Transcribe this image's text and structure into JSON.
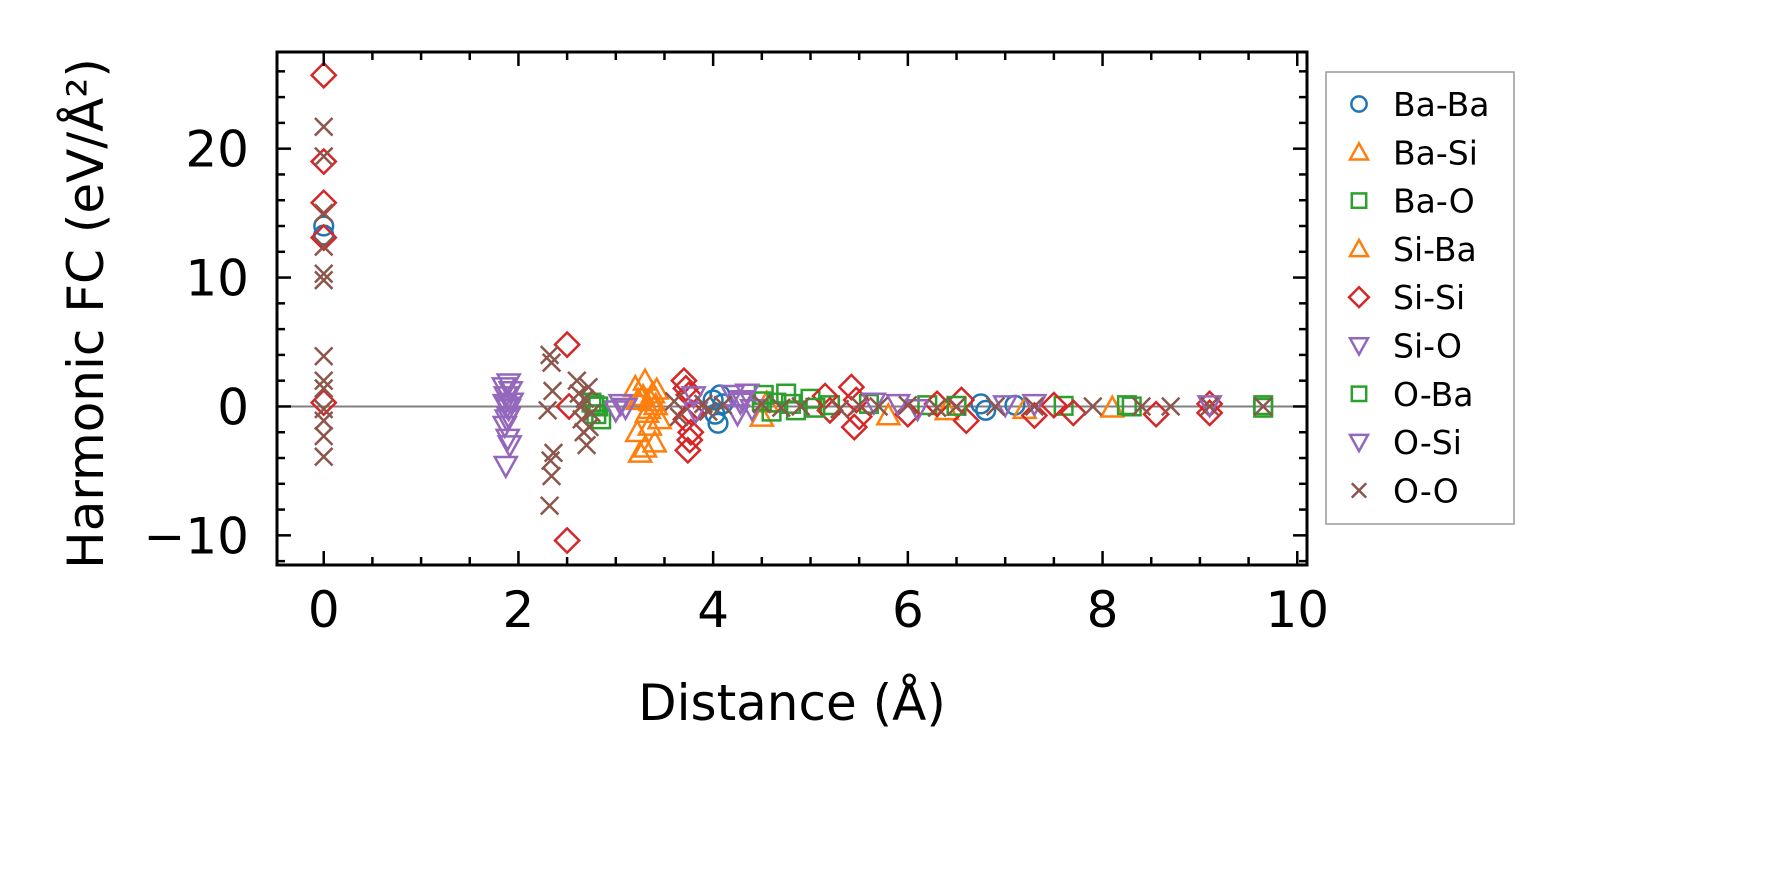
{
  "chart_data": {
    "type": "scatter",
    "xlabel": "Distance (Å)",
    "ylabel": "Harmonic FC (eV/Å²)",
    "xlim": [
      -0.48,
      10.1
    ],
    "ylim": [
      -12.3,
      27.5
    ],
    "xticks": [
      0,
      2,
      4,
      6,
      8,
      10
    ],
    "yticks": [
      -10,
      0,
      10,
      20
    ],
    "xtick_labels": [
      "0",
      "2",
      "4",
      "6",
      "8",
      "10"
    ],
    "ytick_labels": [
      "−10",
      "0",
      "10",
      "20"
    ],
    "zero_line": true,
    "grid": false,
    "legend_position": "outside-right",
    "colors": {
      "Ba-Ba": "#1f77b4",
      "Ba-Si": "#ff7f0e",
      "Ba-O": "#2ca02c",
      "Si-Ba": "#ff7f0e",
      "Si-Si": "#d62728",
      "Si-O": "#9467bd",
      "O-Ba": "#2ca02c",
      "O-Si": "#9467bd",
      "O-O": "#8c564b"
    },
    "series": [
      {
        "name": "Ba-Ba",
        "marker": "circle",
        "points": [
          [
            0,
            14.0
          ],
          [
            0,
            13.3
          ],
          [
            4.0,
            0.5
          ],
          [
            4.02,
            -0.6
          ],
          [
            4.05,
            -1.3
          ],
          [
            4.07,
            0.9
          ],
          [
            4.1,
            0.2
          ],
          [
            6.75,
            0.2
          ],
          [
            6.8,
            -0.3
          ],
          [
            7.1,
            0.1
          ]
        ]
      },
      {
        "name": "Ba-Si",
        "marker": "triangle-up",
        "points": [
          [
            3.2,
            1.5
          ],
          [
            3.22,
            -2.0
          ],
          [
            3.25,
            -3.6
          ],
          [
            3.28,
            0.8
          ],
          [
            3.3,
            2.0
          ],
          [
            3.32,
            -0.5
          ],
          [
            3.35,
            -1.5
          ],
          [
            3.38,
            1.0
          ],
          [
            3.4,
            -2.8
          ],
          [
            3.42,
            1.3
          ],
          [
            3.45,
            -1.0
          ],
          [
            3.3,
            -3.2
          ],
          [
            3.36,
            0.4
          ],
          [
            4.5,
            -0.8
          ],
          [
            4.55,
            0.3
          ],
          [
            5.8,
            -0.7
          ],
          [
            6.4,
            -0.3
          ],
          [
            7.2,
            -0.2
          ],
          [
            8.1,
            -0.1
          ]
        ]
      },
      {
        "name": "Ba-O",
        "marker": "square",
        "points": [
          [
            2.75,
            0.3
          ],
          [
            2.8,
            -0.6
          ],
          [
            2.82,
            0.0
          ],
          [
            2.85,
            -1.0
          ],
          [
            4.5,
            0.4
          ],
          [
            4.52,
            0.9
          ],
          [
            4.6,
            -0.4
          ],
          [
            4.75,
            1.0
          ],
          [
            4.8,
            0.2
          ],
          [
            4.85,
            -0.3
          ],
          [
            5.0,
            0.6
          ],
          [
            5.2,
            0.1
          ],
          [
            5.6,
            0.2
          ],
          [
            6.2,
            0.1
          ],
          [
            7.6,
            0.05
          ],
          [
            8.25,
            0.1
          ],
          [
            9.65,
            -0.1
          ],
          [
            9.65,
            0.1
          ]
        ]
      },
      {
        "name": "Si-Ba",
        "marker": "triangle-up",
        "points": [
          [
            3.23,
            0.5
          ],
          [
            3.34,
            -0.2
          ],
          [
            3.41,
            0.1
          ]
        ]
      },
      {
        "name": "Si-Si",
        "marker": "diamond",
        "points": [
          [
            0,
            25.7
          ],
          [
            0,
            19.0
          ],
          [
            0,
            15.8
          ],
          [
            0,
            13.1
          ],
          [
            0,
            0.3
          ],
          [
            2.5,
            4.8
          ],
          [
            2.5,
            -10.4
          ],
          [
            2.52,
            0.0
          ],
          [
            3.7,
            2.0
          ],
          [
            3.72,
            -1.0
          ],
          [
            3.74,
            -3.4
          ],
          [
            3.75,
            0.9
          ],
          [
            3.77,
            -2.0
          ],
          [
            3.78,
            -0.5
          ],
          [
            3.72,
            1.4
          ],
          [
            3.76,
            -2.6
          ],
          [
            5.15,
            0.8
          ],
          [
            5.2,
            -0.3
          ],
          [
            5.42,
            1.5
          ],
          [
            5.45,
            -1.6
          ],
          [
            5.47,
            0.5
          ],
          [
            5.5,
            -0.8
          ],
          [
            6.0,
            -0.6
          ],
          [
            6.3,
            0.2
          ],
          [
            6.55,
            0.5
          ],
          [
            6.6,
            -1.1
          ],
          [
            7.3,
            -0.7
          ],
          [
            7.5,
            0.1
          ],
          [
            7.7,
            -0.5
          ],
          [
            8.55,
            -0.6
          ],
          [
            9.1,
            -0.5
          ],
          [
            9.1,
            0.2
          ]
        ]
      },
      {
        "name": "Si-O",
        "marker": "triangle-down",
        "points": [
          [
            1.85,
            1.5
          ],
          [
            1.87,
            0.8
          ],
          [
            1.88,
            0.0
          ],
          [
            1.9,
            -0.8
          ],
          [
            1.92,
            1.2
          ],
          [
            1.86,
            -1.5
          ],
          [
            1.89,
            -2.5
          ],
          [
            1.91,
            -3.0
          ],
          [
            1.87,
            -4.6
          ],
          [
            1.93,
            0.3
          ],
          [
            1.88,
            -1.0
          ],
          [
            1.9,
            1.8
          ],
          [
            3.0,
            -0.3
          ],
          [
            3.05,
            0.2
          ],
          [
            3.1,
            -0.1
          ],
          [
            3.8,
            0.8
          ],
          [
            3.82,
            -0.4
          ],
          [
            4.2,
            0.9
          ],
          [
            4.25,
            -0.6
          ],
          [
            4.3,
            0.5
          ],
          [
            4.35,
            1.0
          ],
          [
            4.4,
            -0.2
          ],
          [
            5.65,
            0.3
          ],
          [
            5.9,
            0.2
          ],
          [
            6.1,
            -0.2
          ],
          [
            7.0,
            0.1
          ],
          [
            7.3,
            0.2
          ],
          [
            9.1,
            0.1
          ]
        ]
      },
      {
        "name": "O-Ba",
        "marker": "square",
        "points": [
          [
            2.78,
            0.1
          ],
          [
            4.65,
            0.3
          ],
          [
            5.05,
            -0.1
          ],
          [
            6.5,
            0.05
          ],
          [
            8.3,
            0.0
          ]
        ]
      },
      {
        "name": "O-Si",
        "marker": "triangle-down",
        "points": [
          [
            1.86,
            0.2
          ],
          [
            1.9,
            -0.2
          ],
          [
            4.28,
            0.3
          ]
        ]
      },
      {
        "name": "O-O",
        "marker": "x",
        "points": [
          [
            0,
            21.7
          ],
          [
            0,
            19.4
          ],
          [
            0,
            15.0
          ],
          [
            0,
            12.4
          ],
          [
            0,
            10.3
          ],
          [
            0,
            9.8
          ],
          [
            0,
            3.9
          ],
          [
            0,
            2.0
          ],
          [
            0,
            1.4
          ],
          [
            0,
            -0.2
          ],
          [
            0,
            -1.1
          ],
          [
            0,
            -2.3
          ],
          [
            0,
            -3.9
          ],
          [
            2.32,
            4.0
          ],
          [
            2.34,
            3.4
          ],
          [
            2.35,
            1.2
          ],
          [
            2.3,
            -0.3
          ],
          [
            2.36,
            -3.6
          ],
          [
            2.33,
            -4.2
          ],
          [
            2.34,
            -5.4
          ],
          [
            2.32,
            -7.7
          ],
          [
            2.6,
            2.0
          ],
          [
            2.62,
            1.0
          ],
          [
            2.64,
            0.0
          ],
          [
            2.65,
            -1.0
          ],
          [
            2.67,
            -2.0
          ],
          [
            2.7,
            -3.0
          ],
          [
            2.72,
            1.5
          ],
          [
            2.75,
            -0.5
          ],
          [
            2.68,
            0.6
          ],
          [
            2.73,
            -1.6
          ],
          [
            3.6,
            0.4
          ],
          [
            3.65,
            -0.8
          ],
          [
            3.9,
            0.2
          ],
          [
            3.95,
            -0.4
          ],
          [
            4.1,
            0.1
          ],
          [
            4.5,
            0.2
          ],
          [
            4.7,
            -0.1
          ],
          [
            4.9,
            0.0
          ],
          [
            5.3,
            -0.2
          ],
          [
            5.5,
            0.1
          ],
          [
            5.7,
            0.0
          ],
          [
            6.0,
            0.1
          ],
          [
            6.3,
            -0.1
          ],
          [
            6.5,
            0.0
          ],
          [
            6.9,
            0.0
          ],
          [
            7.3,
            0.0
          ],
          [
            7.9,
            0.0
          ],
          [
            8.4,
            0.0
          ],
          [
            8.7,
            0.0
          ],
          [
            9.1,
            0.0
          ],
          [
            9.65,
            0.0
          ]
        ]
      }
    ]
  }
}
